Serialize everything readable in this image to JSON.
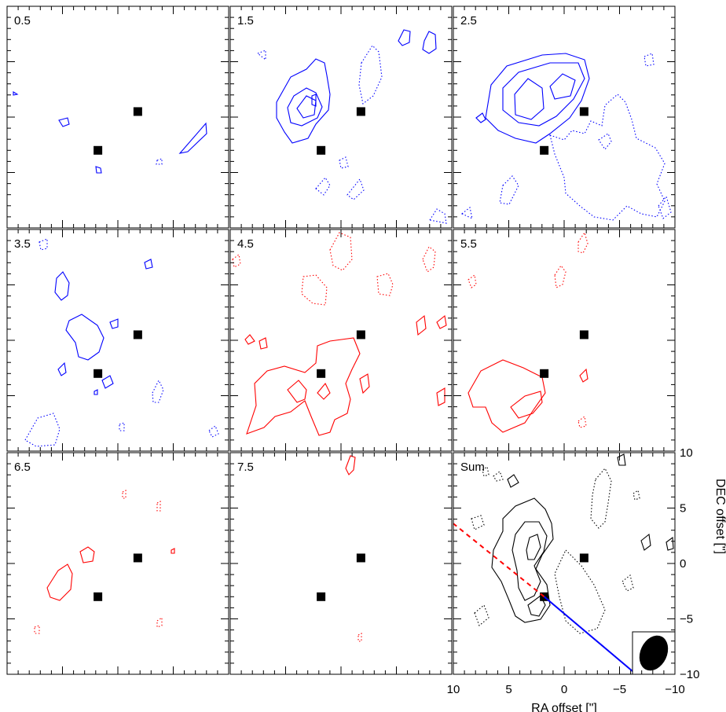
{
  "chart_data": {
    "type": "contour",
    "layout": "3x3 channel map grid",
    "xlabel": "RA offset [\"]",
    "ylabel": "DEC offset [\"]",
    "xlim": [
      10,
      -10
    ],
    "ylim": [
      -10,
      10
    ],
    "x_ticks": [
      "10",
      "5",
      "0",
      "−5",
      "−10"
    ],
    "y_ticks": [
      "10",
      "5",
      "0",
      "−5",
      "−10"
    ],
    "sources": [
      {
        "ra": -1.8,
        "dec": 0.5
      },
      {
        "ra": 1.8,
        "dec": -3.0
      }
    ],
    "panels": [
      {
        "label": "0.5",
        "color": "#0000ff"
      },
      {
        "label": "1.5",
        "color": "#0000ff"
      },
      {
        "label": "2.5",
        "color": "#0000ff"
      },
      {
        "label": "3.5",
        "color": "#0000ff"
      },
      {
        "label": "4.5",
        "color": "#ff0000"
      },
      {
        "label": "5.5",
        "color": "#ff0000"
      },
      {
        "label": "6.5",
        "color": "#ff0000"
      },
      {
        "label": "7.5",
        "color": "#ff0000"
      },
      {
        "label": "Sum",
        "color": "#000000"
      }
    ],
    "outflow_axes": [
      {
        "lobe": "blue",
        "style": "solid",
        "from": [
          1.8,
          -3.0
        ],
        "to": [
          -6.5,
          -10.0
        ],
        "color": "#0000ff"
      },
      {
        "lobe": "red",
        "style": "dashed",
        "from": [
          1.8,
          -3.0
        ],
        "to": [
          10.0,
          3.6
        ],
        "color": "#ff0000"
      }
    ],
    "beam": {
      "major": 3.3,
      "minor": 2.4,
      "pa_deg": 25
    }
  }
}
